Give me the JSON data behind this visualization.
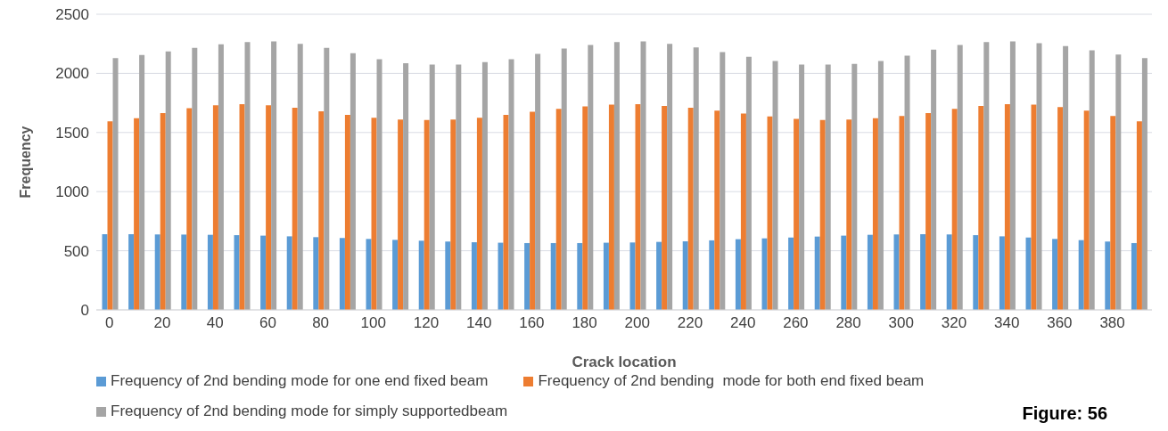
{
  "chart_data": {
    "type": "bar",
    "xlabel": "Crack location",
    "ylabel": "Frequency",
    "categories": [
      "0",
      null,
      "20",
      null,
      "40",
      null,
      "60",
      null,
      "80",
      null,
      "100",
      null,
      "120",
      null,
      "140",
      null,
      "160",
      null,
      "180",
      null,
      "200",
      null,
      "220",
      null,
      "240",
      null,
      "260",
      null,
      "280",
      null,
      "300",
      null,
      "320",
      null,
      "340",
      null,
      "360",
      null,
      "380",
      null
    ],
    "series": [
      {
        "name": "Frequency of 2nd bending mode for one end fixed beam",
        "color": "#5b9bd5",
        "values": [
          640,
          640,
          638,
          637,
          635,
          632,
          628,
          622,
          615,
          608,
          600,
          592,
          585,
          578,
          572,
          568,
          565,
          565,
          565,
          568,
          570,
          575,
          580,
          588,
          598,
          605,
          612,
          620,
          628,
          635,
          638,
          640,
          638,
          632,
          622,
          612,
          600,
          590,
          578,
          565
        ]
      },
      {
        "name": "Frequency of 2nd bending  mode for both end fixed beam",
        "color": "#ed7d31",
        "values": [
          1595,
          1620,
          1665,
          1705,
          1730,
          1740,
          1730,
          1710,
          1680,
          1650,
          1625,
          1610,
          1605,
          1610,
          1625,
          1650,
          1675,
          1700,
          1720,
          1735,
          1740,
          1725,
          1710,
          1685,
          1660,
          1635,
          1615,
          1605,
          1610,
          1620,
          1640,
          1665,
          1700,
          1725,
          1740,
          1735,
          1715,
          1685,
          1640,
          1595
        ]
      },
      {
        "name": "Frequency of 2nd bending mode for simply supportedbeam",
        "color": "#a5a5a5",
        "values": [
          2130,
          2155,
          2185,
          2215,
          2245,
          2265,
          2270,
          2250,
          2215,
          2170,
          2120,
          2085,
          2075,
          2075,
          2095,
          2120,
          2165,
          2210,
          2240,
          2265,
          2270,
          2250,
          2220,
          2180,
          2140,
          2105,
          2075,
          2075,
          2080,
          2105,
          2150,
          2200,
          2240,
          2265,
          2270,
          2255,
          2230,
          2195,
          2160,
          2130
        ]
      }
    ],
    "ylim": [
      0,
      2500
    ],
    "yticks": [
      0,
      500,
      1000,
      1500,
      2000,
      2500
    ],
    "grid": "y",
    "legend": "bottom",
    "annotations": [
      "Figure: 56"
    ]
  }
}
